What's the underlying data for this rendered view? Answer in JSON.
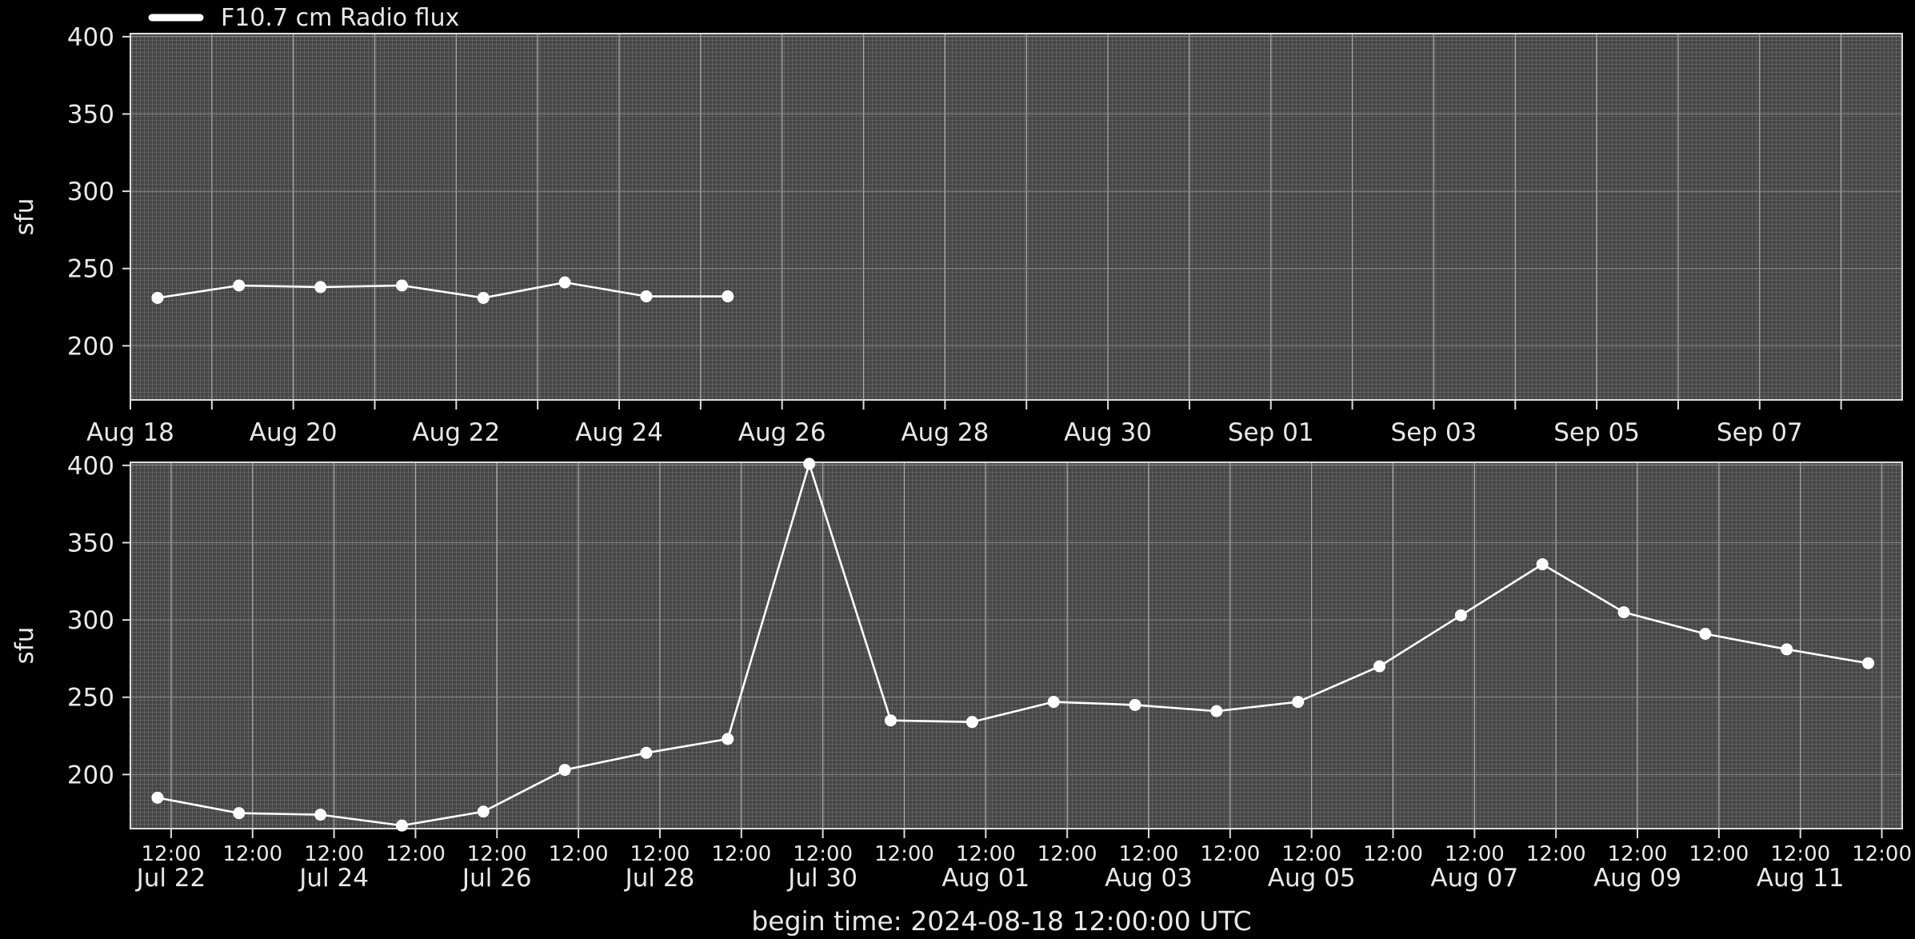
{
  "legend": {
    "label": "F10.7 cm Radio flux",
    "placement": "top-left"
  },
  "footer": {
    "begin_time": "begin time: 2024-08-18 12:00:00 UTC"
  },
  "colors": {
    "background": "#000000",
    "plot_face": "#4a4a4a",
    "line": "#ffffff",
    "grid": "#9a9a9a",
    "text": "#e8e8e8"
  },
  "chart_data": [
    {
      "type": "line",
      "name": "top-panel",
      "ylabel": "sfu",
      "xlim": [
        "2024-08-18",
        "2024-09-08 18:00"
      ],
      "ylim": [
        165,
        402
      ],
      "yticks": [
        200,
        250,
        300,
        350,
        400
      ],
      "grid": true,
      "x_major_tick_labels": [
        {
          "t": "2024-08-18",
          "label": "Aug 18"
        },
        {
          "t": "2024-08-20",
          "label": "Aug 20"
        },
        {
          "t": "2024-08-22",
          "label": "Aug 22"
        },
        {
          "t": "2024-08-24",
          "label": "Aug 24"
        },
        {
          "t": "2024-08-26",
          "label": "Aug 26"
        },
        {
          "t": "2024-08-28",
          "label": "Aug 28"
        },
        {
          "t": "2024-08-30",
          "label": "Aug 30"
        },
        {
          "t": "2024-09-01",
          "label": "Sep 01"
        },
        {
          "t": "2024-09-03",
          "label": "Sep 03"
        },
        {
          "t": "2024-09-05",
          "label": "Sep 05"
        },
        {
          "t": "2024-09-07",
          "label": "Sep 07"
        }
      ],
      "series": [
        {
          "name": "F10.7 cm Radio flux",
          "points": [
            {
              "t": "2024-08-18 08:00",
              "v": 231
            },
            {
              "t": "2024-08-19 08:00",
              "v": 239
            },
            {
              "t": "2024-08-20 08:00",
              "v": 238
            },
            {
              "t": "2024-08-21 08:00",
              "v": 239
            },
            {
              "t": "2024-08-22 08:00",
              "v": 231
            },
            {
              "t": "2024-08-23 08:00",
              "v": 241
            },
            {
              "t": "2024-08-24 08:00",
              "v": 232
            },
            {
              "t": "2024-08-25 08:00",
              "v": 232
            }
          ]
        }
      ]
    },
    {
      "type": "line",
      "name": "bottom-panel",
      "ylabel": "sfu",
      "xlim": [
        "2024-07-22",
        "2024-08-12 18:00"
      ],
      "ylim": [
        165,
        402
      ],
      "yticks": [
        200,
        250,
        300,
        350,
        400
      ],
      "grid": true,
      "x_minor_tick_labels": [
        {
          "t": "2024-07-22 12:00",
          "label": "12:00"
        },
        {
          "t": "2024-07-23 12:00",
          "label": "12:00"
        },
        {
          "t": "2024-07-24 12:00",
          "label": "12:00"
        },
        {
          "t": "2024-07-25 12:00",
          "label": "12:00"
        },
        {
          "t": "2024-07-26 12:00",
          "label": "12:00"
        },
        {
          "t": "2024-07-27 12:00",
          "label": "12:00"
        },
        {
          "t": "2024-07-28 12:00",
          "label": "12:00"
        },
        {
          "t": "2024-07-29 12:00",
          "label": "12:00"
        },
        {
          "t": "2024-07-30 12:00",
          "label": "12:00"
        },
        {
          "t": "2024-07-31 12:00",
          "label": "12:00"
        },
        {
          "t": "2024-08-01 12:00",
          "label": "12:00"
        },
        {
          "t": "2024-08-02 12:00",
          "label": "12:00"
        },
        {
          "t": "2024-08-03 12:00",
          "label": "12:00"
        },
        {
          "t": "2024-08-04 12:00",
          "label": "12:00"
        },
        {
          "t": "2024-08-05 12:00",
          "label": "12:00"
        },
        {
          "t": "2024-08-06 12:00",
          "label": "12:00"
        },
        {
          "t": "2024-08-07 12:00",
          "label": "12:00"
        },
        {
          "t": "2024-08-08 12:00",
          "label": "12:00"
        },
        {
          "t": "2024-08-09 12:00",
          "label": "12:00"
        },
        {
          "t": "2024-08-10 12:00",
          "label": "12:00"
        },
        {
          "t": "2024-08-11 12:00",
          "label": "12:00"
        },
        {
          "t": "2024-08-12 12:00",
          "label": "12:00"
        }
      ],
      "x_major_tick_labels": [
        {
          "t": "2024-07-22 12:00",
          "label": "Jul 22"
        },
        {
          "t": "2024-07-24 12:00",
          "label": "Jul 24"
        },
        {
          "t": "2024-07-26 12:00",
          "label": "Jul 26"
        },
        {
          "t": "2024-07-28 12:00",
          "label": "Jul 28"
        },
        {
          "t": "2024-07-30 12:00",
          "label": "Jul 30"
        },
        {
          "t": "2024-08-01 12:00",
          "label": "Aug 01"
        },
        {
          "t": "2024-08-03 12:00",
          "label": "Aug 03"
        },
        {
          "t": "2024-08-05 12:00",
          "label": "Aug 05"
        },
        {
          "t": "2024-08-07 12:00",
          "label": "Aug 07"
        },
        {
          "t": "2024-08-09 12:00",
          "label": "Aug 09"
        },
        {
          "t": "2024-08-11 12:00",
          "label": "Aug 11"
        }
      ],
      "series": [
        {
          "name": "F10.7 cm Radio flux",
          "points": [
            {
              "t": "2024-07-22 08:00",
              "v": 185
            },
            {
              "t": "2024-07-23 08:00",
              "v": 175
            },
            {
              "t": "2024-07-24 08:00",
              "v": 174
            },
            {
              "t": "2024-07-25 08:00",
              "v": 167
            },
            {
              "t": "2024-07-26 08:00",
              "v": 176
            },
            {
              "t": "2024-07-27 08:00",
              "v": 203
            },
            {
              "t": "2024-07-28 08:00",
              "v": 214
            },
            {
              "t": "2024-07-29 08:00",
              "v": 223
            },
            {
              "t": "2024-07-30 08:00",
              "v": 401
            },
            {
              "t": "2024-07-31 08:00",
              "v": 235
            },
            {
              "t": "2024-08-01 08:00",
              "v": 234
            },
            {
              "t": "2024-08-02 08:00",
              "v": 247
            },
            {
              "t": "2024-08-03 08:00",
              "v": 245
            },
            {
              "t": "2024-08-04 08:00",
              "v": 241
            },
            {
              "t": "2024-08-05 08:00",
              "v": 247
            },
            {
              "t": "2024-08-06 08:00",
              "v": 270
            },
            {
              "t": "2024-08-07 08:00",
              "v": 303
            },
            {
              "t": "2024-08-08 08:00",
              "v": 336
            },
            {
              "t": "2024-08-09 08:00",
              "v": 305
            },
            {
              "t": "2024-08-10 08:00",
              "v": 291
            },
            {
              "t": "2024-08-11 08:00",
              "v": 281
            },
            {
              "t": "2024-08-12 08:00",
              "v": 272
            }
          ]
        }
      ]
    }
  ]
}
